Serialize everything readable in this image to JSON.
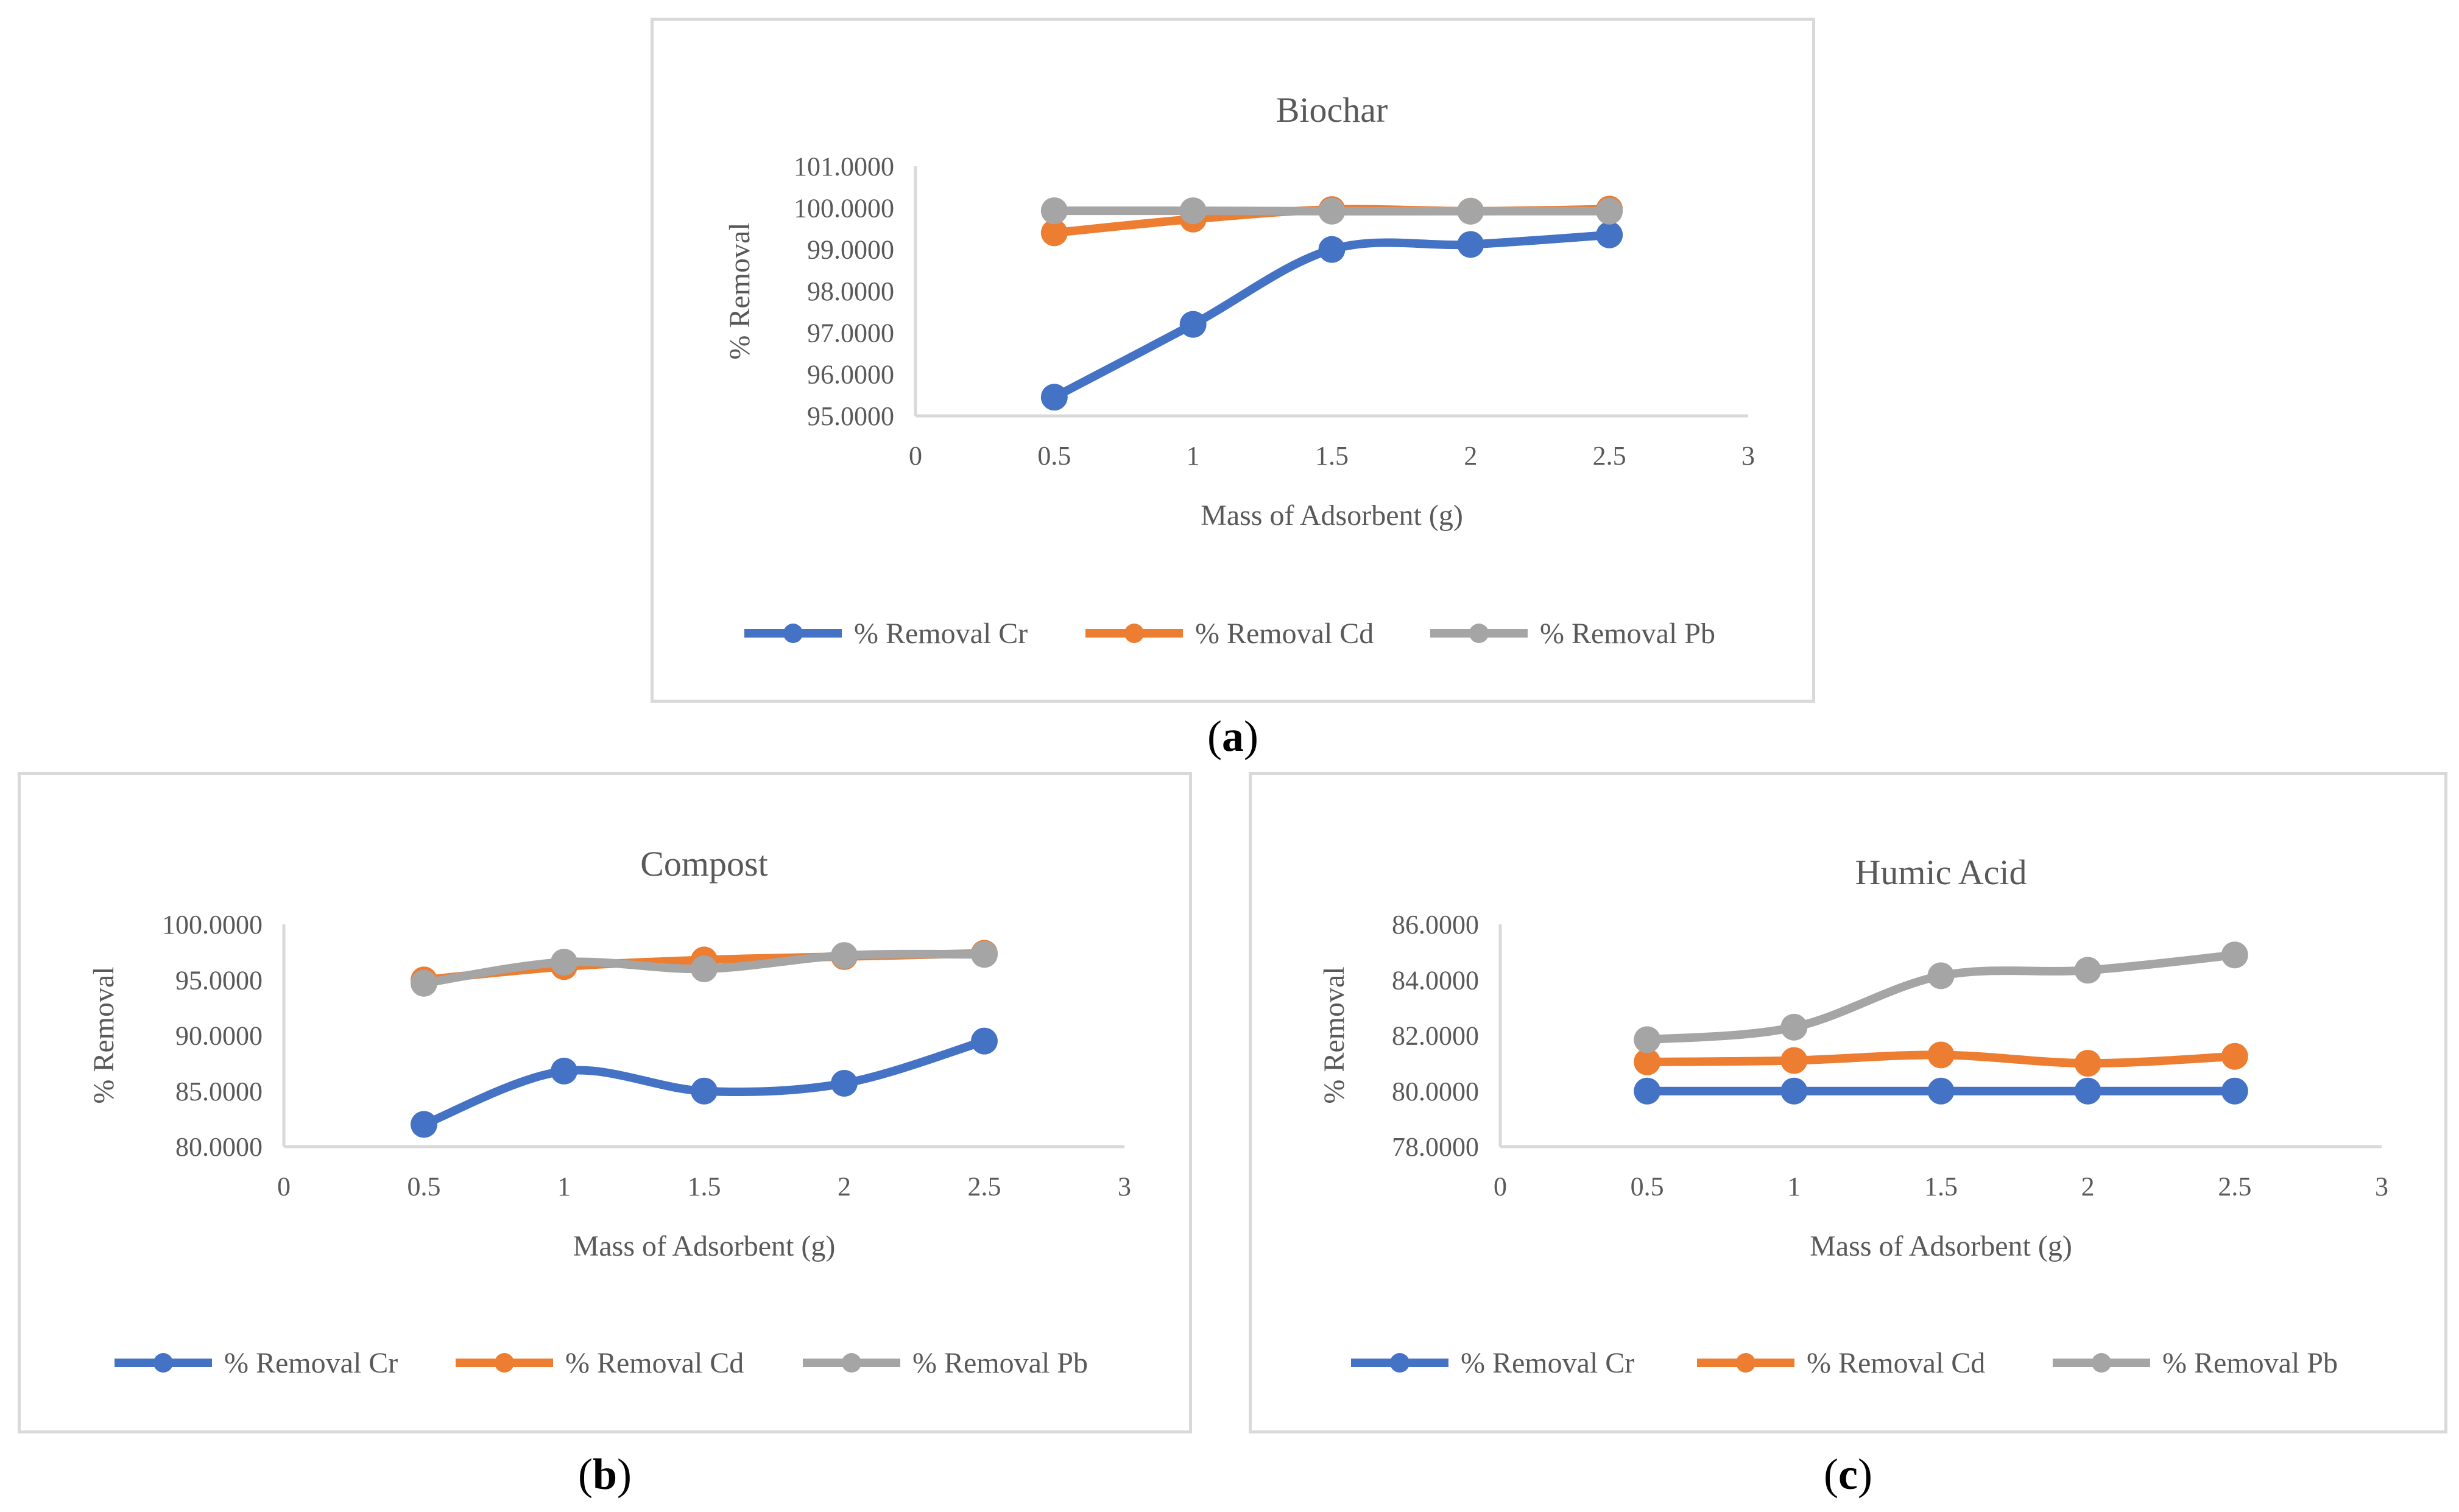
{
  "captions": [
    "(a)",
    "(b)",
    "(c)"
  ],
  "colors": {
    "cr": "#4472C4",
    "cd": "#ED7D31",
    "pb": "#A5A5A5",
    "axis": "#d9d9d9",
    "text": "#595959"
  },
  "chart_data": [
    {
      "type": "line",
      "title": "Biochar",
      "xlabel": "Mass of Adsorbent (g)",
      "ylabel": "% Removal",
      "xlim": [
        0,
        3
      ],
      "ylim": [
        95,
        101
      ],
      "xticks": [
        "0",
        "0.5",
        "1",
        "1.5",
        "2",
        "2.5",
        "3"
      ],
      "yticks": [
        "95.0000",
        "96.0000",
        "97.0000",
        "98.0000",
        "99.0000",
        "100.0000",
        "101.0000"
      ],
      "x": [
        0.5,
        1,
        1.5,
        2,
        2.5
      ],
      "series": [
        {
          "name": "% Removal Cr",
          "values": [
            95.45,
            97.2,
            99.0,
            99.12,
            99.35
          ]
        },
        {
          "name": "% Removal Cd",
          "values": [
            99.4,
            99.73,
            99.96,
            99.92,
            99.97
          ]
        },
        {
          "name": "% Removal Pb",
          "values": [
            99.93,
            99.93,
            99.92,
            99.92,
            99.92
          ]
        }
      ],
      "legend": "bottom",
      "grid": false
    },
    {
      "type": "line",
      "title": "Compost",
      "xlabel": "Mass of Adsorbent (g)",
      "ylabel": "% Removal",
      "xlim": [
        0,
        3
      ],
      "ylim": [
        80,
        100
      ],
      "xticks": [
        "0",
        "0.5",
        "1",
        "1.5",
        "2",
        "2.5",
        "3"
      ],
      "yticks": [
        "80.0000",
        "85.0000",
        "90.0000",
        "95.0000",
        "100.0000"
      ],
      "x": [
        0.5,
        1,
        1.5,
        2,
        2.5
      ],
      "series": [
        {
          "name": "% Removal Cr",
          "values": [
            82.0,
            86.8,
            85.0,
            85.7,
            89.5
          ]
        },
        {
          "name": "% Removal Cd",
          "values": [
            95.0,
            96.2,
            96.8,
            97.1,
            97.4
          ]
        },
        {
          "name": "% Removal Pb",
          "values": [
            94.7,
            96.6,
            96.0,
            97.2,
            97.3
          ]
        }
      ],
      "legend": "bottom",
      "grid": false
    },
    {
      "type": "line",
      "title": "Humic Acid",
      "xlabel": "Mass of Adsorbent (g)",
      "ylabel": "% Removal",
      "xlim": [
        0,
        3
      ],
      "ylim": [
        78,
        86
      ],
      "xticks": [
        "0",
        "0.5",
        "1",
        "1.5",
        "2",
        "2.5",
        "3"
      ],
      "yticks": [
        "78.0000",
        "80.0000",
        "82.0000",
        "84.0000",
        "86.0000"
      ],
      "x": [
        0.5,
        1,
        1.5,
        2,
        2.5
      ],
      "series": [
        {
          "name": "% Removal Cr",
          "values": [
            80.0,
            80.0,
            80.0,
            80.0,
            80.0
          ]
        },
        {
          "name": "% Removal Cd",
          "values": [
            81.05,
            81.1,
            81.3,
            81.0,
            81.25
          ]
        },
        {
          "name": "% Removal Pb",
          "values": [
            81.85,
            82.3,
            84.15,
            84.35,
            84.9
          ]
        }
      ],
      "legend": "bottom",
      "grid": false
    }
  ]
}
